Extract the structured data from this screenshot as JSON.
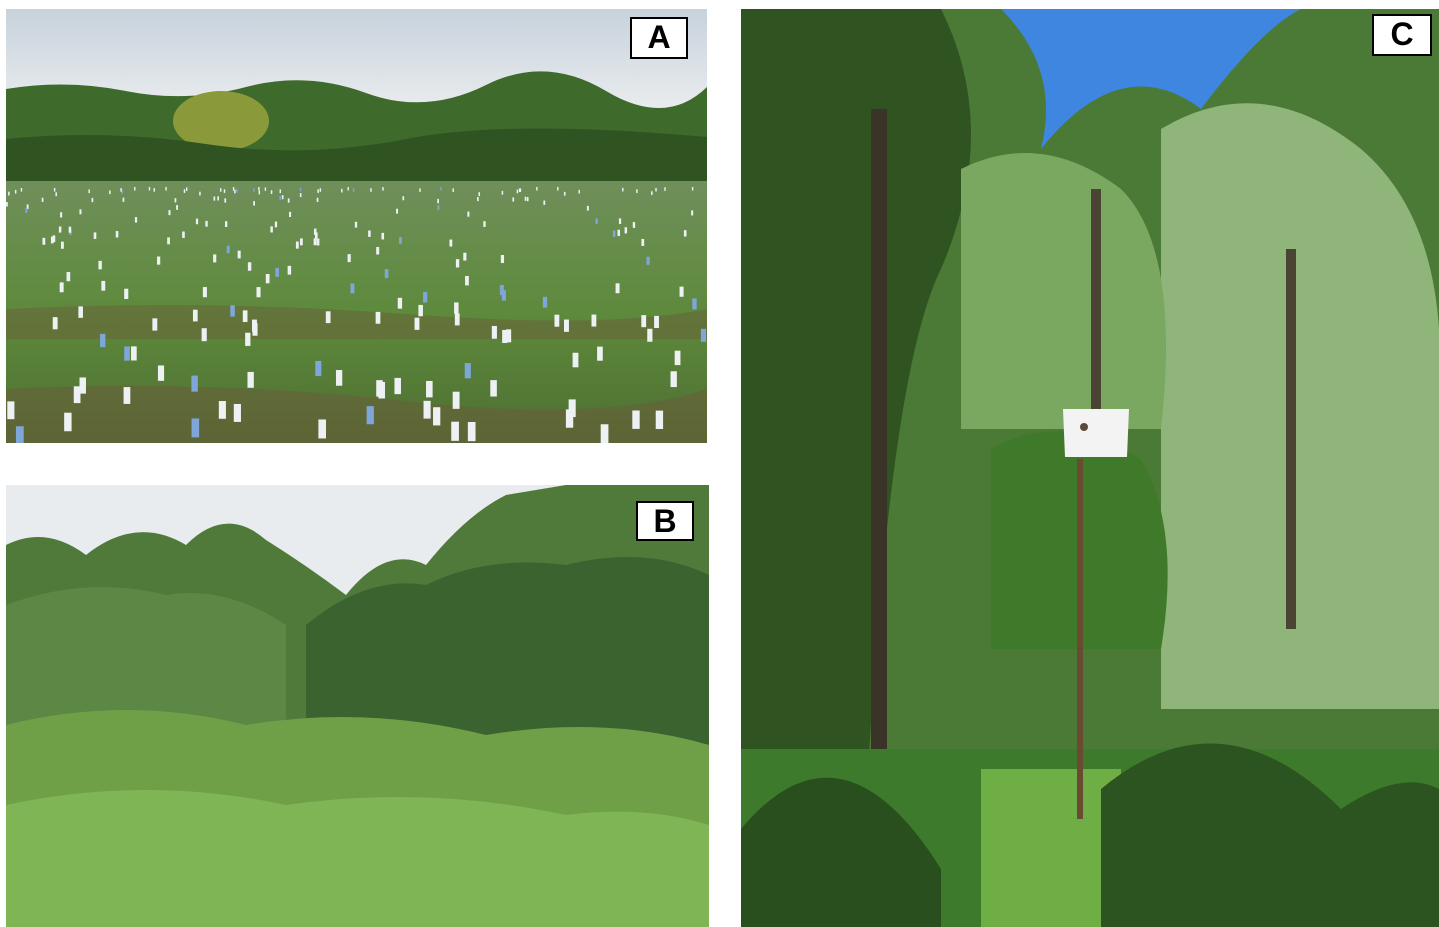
{
  "panels": [
    {
      "id": "A",
      "label": "A"
    },
    {
      "id": "B",
      "label": "B"
    },
    {
      "id": "C",
      "label": "C"
    }
  ],
  "colors": {
    "sky_pale": "#dfe3e6",
    "sky_blue": "#3f86e0",
    "field_green": "#5d8a3a",
    "foliage_dark": "#2f5a22",
    "foliage_light": "#8fbf6a",
    "soil": "#6b5a3a",
    "tree_tube": "#eef1f4",
    "pole": "#6a4a30",
    "birdbox": "#f3f3f3"
  }
}
